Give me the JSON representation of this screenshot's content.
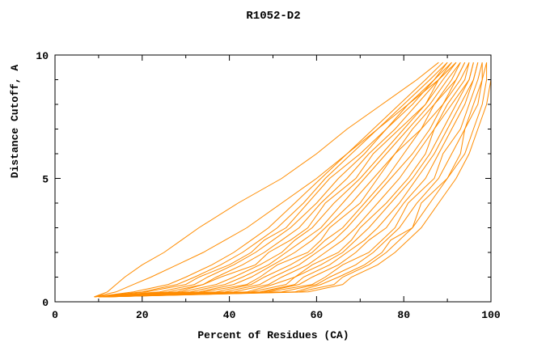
{
  "chart_data": {
    "type": "line",
    "title": "R1052-D2",
    "xlabel": "Percent of Residues (CA)",
    "ylabel": "Distance Cutoff, A",
    "xlim": [
      0,
      100
    ],
    "ylim": [
      0,
      10
    ],
    "x_major_ticks": [
      0,
      20,
      40,
      60,
      80,
      100
    ],
    "x_minor_ticks": [
      10,
      30,
      50,
      70,
      90
    ],
    "y_major_ticks": [
      0,
      5,
      10
    ],
    "y_minor_ticks": [
      1,
      2,
      3,
      4,
      6,
      7,
      8,
      9
    ],
    "line_color": "#ff8c00",
    "axis_color": "#000000",
    "background": "#ffffff",
    "legend": "none",
    "grid": false,
    "y_levels": [
      0.2,
      0.4,
      0.7,
      1.0,
      1.5,
      2.0,
      2.5,
      3.0,
      4.0,
      5.0,
      6.0,
      7.0,
      8.0,
      9.0,
      9.7
    ],
    "series": [
      {
        "x": [
          9,
          12,
          14,
          16,
          20,
          25,
          29,
          33,
          42,
          52,
          60,
          67,
          75,
          83,
          88
        ]
      },
      {
        "x": [
          9,
          14,
          18,
          22,
          28,
          34,
          39,
          44,
          52,
          60,
          67,
          74,
          81,
          88,
          92
        ]
      },
      {
        "x": [
          9,
          18,
          26,
          30,
          36,
          41,
          45,
          49,
          55,
          61,
          67,
          73,
          79,
          85,
          89
        ]
      },
      {
        "x": [
          9,
          20,
          28,
          32,
          38,
          43,
          47,
          51,
          57,
          62,
          68,
          74,
          80,
          86,
          90
        ]
      },
      {
        "x": [
          9,
          21,
          30,
          33,
          40,
          45,
          48,
          53,
          58,
          63,
          70,
          76,
          81,
          87,
          90
        ]
      },
      {
        "x": [
          9,
          24,
          32,
          35,
          41,
          46,
          50,
          54,
          60,
          65,
          71,
          76,
          82,
          87,
          91
        ]
      },
      {
        "x": [
          10,
          26,
          34,
          37,
          43,
          48,
          52,
          56,
          61,
          67,
          72,
          78,
          83,
          88,
          91
        ]
      },
      {
        "x": [
          10,
          28,
          34,
          38,
          46,
          49,
          54,
          58,
          62,
          69,
          73,
          79,
          85,
          88,
          92
        ]
      },
      {
        "x": [
          10,
          29,
          37,
          41,
          47,
          52,
          55,
          59,
          64,
          70,
          75,
          80,
          85,
          89,
          92
        ]
      },
      {
        "x": [
          10,
          31,
          39,
          43,
          49,
          53,
          57,
          61,
          66,
          71,
          76,
          81,
          86,
          90,
          93
        ]
      },
      {
        "x": [
          10,
          33,
          41,
          45,
          50,
          55,
          59,
          62,
          68,
          73,
          78,
          82,
          87,
          91,
          93
        ]
      },
      {
        "x": [
          10,
          34,
          44,
          47,
          51,
          58,
          61,
          63,
          70,
          74,
          78,
          84,
          87,
          92,
          94
        ]
      },
      {
        "x": [
          10,
          37,
          45,
          48,
          54,
          59,
          62,
          66,
          71,
          76,
          80,
          84,
          89,
          92,
          94
        ]
      },
      {
        "x": [
          11,
          39,
          47,
          50,
          56,
          60,
          64,
          67,
          72,
          77,
          82,
          86,
          89,
          93,
          95
        ]
      },
      {
        "x": [
          11,
          41,
          49,
          52,
          58,
          62,
          66,
          69,
          74,
          79,
          83,
          87,
          90,
          94,
          95
        ]
      },
      {
        "x": [
          11,
          44,
          50,
          55,
          59,
          65,
          68,
          70,
          76,
          81,
          85,
          87,
          91,
          95,
          96
        ]
      },
      {
        "x": [
          11,
          45,
          53,
          55,
          61,
          66,
          69,
          72,
          77,
          82,
          86,
          89,
          92,
          95,
          96
        ]
      },
      {
        "x": [
          11,
          47,
          55,
          57,
          63,
          67,
          71,
          74,
          79,
          83,
          87,
          90,
          93,
          96,
          97
        ]
      },
      {
        "x": [
          11,
          48,
          56,
          59,
          65,
          69,
          72,
          76,
          80,
          85,
          88,
          91,
          94,
          96,
          97
        ]
      },
      {
        "x": [
          12,
          49,
          59,
          62,
          66,
          72,
          75,
          78,
          81,
          87,
          89,
          93,
          95,
          97,
          98
        ]
      },
      {
        "x": [
          12,
          52,
          60,
          63,
          69,
          73,
          76,
          79,
          83,
          88,
          91,
          94,
          96,
          98,
          98
        ]
      },
      {
        "x": [
          12,
          55,
          61,
          65,
          71,
          75,
          77,
          82,
          84,
          90,
          93,
          94,
          97,
          98,
          99
        ]
      },
      {
        "x": [
          12,
          56,
          64,
          66,
          72,
          76,
          79,
          82,
          86,
          90,
          94,
          96,
          98,
          99,
          99
        ]
      },
      {
        "x": [
          12,
          58,
          66,
          68,
          74,
          78,
          81,
          84,
          88,
          92,
          95,
          97,
          99,
          100,
          100
        ]
      }
    ]
  }
}
